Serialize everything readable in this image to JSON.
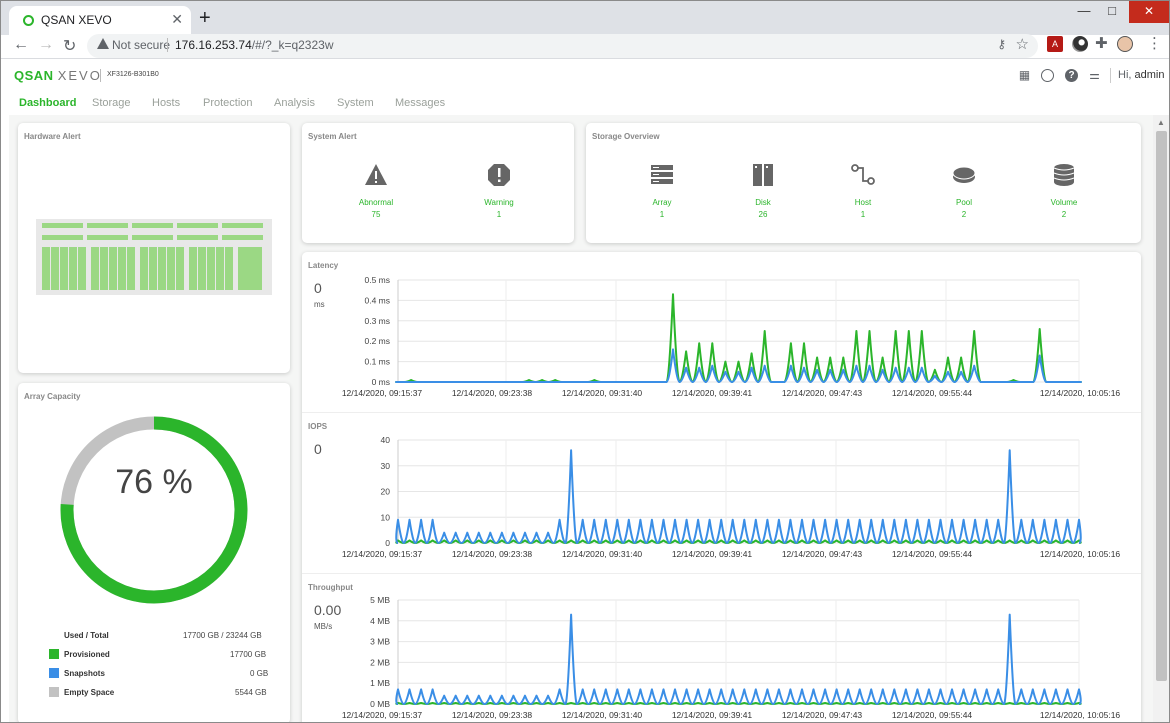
{
  "browser": {
    "tab_title": "QSAN XEVO",
    "tab_close": "✕",
    "new_tab": "+",
    "not_secure": "Not secure",
    "url_host": "176.16.253.74",
    "url_rest": "/#/?_k=q2323w",
    "win_min": "—",
    "win_max": "□",
    "win_close": "✕"
  },
  "app": {
    "logo_main": "QSAN",
    "logo_sub": "XEVO",
    "model": "XF3126-B301B0",
    "greeting": "Hi,",
    "user": "admin"
  },
  "nav": {
    "items": [
      {
        "label": "Dashboard",
        "active": true
      },
      {
        "label": "Storage"
      },
      {
        "label": "Hosts"
      },
      {
        "label": "Protection"
      },
      {
        "label": "Analysis"
      },
      {
        "label": "System"
      },
      {
        "label": "Messages"
      }
    ]
  },
  "hardware_alert": {
    "title": "Hardware Alert"
  },
  "array_capacity": {
    "title": "Array Capacity",
    "percent": 76,
    "percent_label": "76 %",
    "used_total_label": "Used / Total",
    "used_total_value": "17700 GB / 23244 GB",
    "legend": [
      {
        "label": "Provisioned",
        "value": "17700 GB",
        "color": "#2bb52b"
      },
      {
        "label": "Snapshots",
        "value": "0 GB",
        "color": "#3a8ee6"
      },
      {
        "label": "Empty Space",
        "value": "5544 GB",
        "color": "#c2c2c2"
      }
    ]
  },
  "system_alert": {
    "title": "System Alert",
    "items": [
      {
        "label": "Abnormal",
        "value": "75",
        "icon": "warning-triangle-icon"
      },
      {
        "label": "Warning",
        "value": "1",
        "icon": "warning-octagon-icon"
      }
    ]
  },
  "storage_overview": {
    "title": "Storage Overview",
    "items": [
      {
        "label": "Array",
        "value": "1",
        "icon": "array-icon"
      },
      {
        "label": "Disk",
        "value": "26",
        "icon": "disk-icon"
      },
      {
        "label": "Host",
        "value": "1",
        "icon": "host-icon"
      },
      {
        "label": "Pool",
        "value": "2",
        "icon": "pool-icon"
      },
      {
        "label": "Volume",
        "value": "2",
        "icon": "volume-icon"
      }
    ]
  },
  "metrics": {
    "latency": {
      "title": "Latency",
      "value": "0",
      "unit": "ms"
    },
    "iops": {
      "title": "IOPS",
      "value": "0"
    },
    "throughput": {
      "title": "Throughput",
      "value": "0.00",
      "unit": "MB/s"
    }
  },
  "chart_data": [
    {
      "type": "line",
      "title": "Latency",
      "y_ticks": [
        "0 ms",
        "0.1 ms",
        "0.2 ms",
        "0.3 ms",
        "0.4 ms",
        "0.5 ms"
      ],
      "ylim": [
        0,
        0.5
      ],
      "x_ticks": [
        "12/14/2020, 09:15:37",
        "12/14/2020, 09:23:38",
        "12/14/2020, 09:31:40",
        "12/14/2020, 09:39:41",
        "12/14/2020, 09:47:43",
        "12/14/2020, 09:55:44",
        "12/14/2020, 10:05:16"
      ],
      "grid": true,
      "series": [
        {
          "color": "#2bb52b",
          "values": [
            0,
            0.01,
            0,
            0,
            0,
            0,
            0,
            0,
            0,
            0,
            0.01,
            0.01,
            0.01,
            0,
            0,
            0.01,
            0,
            0,
            0,
            0,
            0,
            0.43,
            0.15,
            0.19,
            0.19,
            0.1,
            0.1,
            0.14,
            0.25,
            0,
            0.19,
            0.19,
            0.12,
            0.12,
            0.12,
            0.25,
            0.25,
            0.12,
            0.25,
            0.25,
            0.25,
            0.06,
            0.12,
            0.12,
            0.25,
            0,
            0,
            0.01,
            0,
            0.26,
            0,
            0,
            0
          ]
        },
        {
          "color": "#3a8ee6",
          "values": [
            0,
            0,
            0,
            0,
            0,
            0,
            0,
            0,
            0,
            0,
            0,
            0,
            0,
            0,
            0,
            0,
            0,
            0,
            0,
            0,
            0,
            0.16,
            0.07,
            0.07,
            0.08,
            0.05,
            0.05,
            0.07,
            0.08,
            0,
            0.08,
            0.07,
            0.06,
            0.06,
            0.06,
            0.08,
            0.08,
            0.06,
            0.07,
            0.07,
            0.07,
            0.03,
            0.05,
            0.05,
            0.08,
            0,
            0,
            0,
            0,
            0.13,
            0,
            0,
            0
          ]
        }
      ]
    },
    {
      "type": "line",
      "title": "IOPS",
      "y_ticks": [
        "0",
        "10",
        "20",
        "30",
        "40"
      ],
      "ylim": [
        0,
        40
      ],
      "x_ticks": [
        "12/14/2020, 09:15:37",
        "12/14/2020, 09:23:38",
        "12/14/2020, 09:31:40",
        "12/14/2020, 09:39:41",
        "12/14/2020, 09:47:43",
        "12/14/2020, 09:55:44",
        "12/14/2020, 10:05:16"
      ],
      "grid": true,
      "series": [
        {
          "color": "#2bb52b",
          "values": [
            1,
            1,
            1,
            1,
            1,
            1,
            1,
            1,
            1,
            1,
            1,
            1,
            1,
            1,
            1,
            1,
            1,
            1,
            1,
            1,
            1,
            1,
            1,
            1,
            1,
            1,
            1,
            1,
            1,
            1,
            1,
            1,
            1,
            1,
            1,
            1,
            1,
            1,
            1,
            1,
            1,
            1,
            1,
            1,
            1,
            1,
            1,
            1,
            1,
            1,
            1,
            1,
            1,
            1,
            1,
            1,
            1,
            1,
            1,
            1
          ]
        },
        {
          "color": "#3a8ee6",
          "values": [
            9,
            9,
            9,
            9,
            4,
            4,
            4,
            4,
            4,
            4,
            4,
            4,
            4,
            4,
            9,
            36,
            9,
            9,
            9,
            9,
            9,
            9,
            9,
            9,
            9,
            9,
            9,
            9,
            9,
            9,
            9,
            9,
            9,
            9,
            9,
            9,
            9,
            9,
            9,
            9,
            9,
            9,
            9,
            9,
            9,
            9,
            9,
            9,
            9,
            9,
            9,
            9,
            9,
            36,
            9,
            9,
            9,
            9,
            9,
            9
          ]
        }
      ]
    },
    {
      "type": "line",
      "title": "Throughput",
      "y_ticks": [
        "0 MB",
        "1 MB",
        "2 MB",
        "3 MB",
        "4 MB",
        "5 MB"
      ],
      "ylim": [
        0,
        5
      ],
      "x_ticks": [
        "12/14/2020, 09:15:37",
        "12/14/2020, 09:23:38",
        "12/14/2020, 09:31:40",
        "12/14/2020, 09:39:41",
        "12/14/2020, 09:47:43",
        "12/14/2020, 09:55:44",
        "12/14/2020, 10:05:16"
      ],
      "grid": true,
      "series": [
        {
          "color": "#2bb52b",
          "values": [
            0.05,
            0.05,
            0.05,
            0.05,
            0.05,
            0.05,
            0.05,
            0.05,
            0.05,
            0.05,
            0.05,
            0.05,
            0.05,
            0.05,
            0.05,
            0.05,
            0.05,
            0.05,
            0.05,
            0.05,
            0.05,
            0.05,
            0.05,
            0.05,
            0.05,
            0.05,
            0.05,
            0.05,
            0.05,
            0.05,
            0.05,
            0.05,
            0.05,
            0.05,
            0.05,
            0.05,
            0.05,
            0.05,
            0.05,
            0.05,
            0.05,
            0.05,
            0.05,
            0.05,
            0.05,
            0.05,
            0.05,
            0.05,
            0.05,
            0.05,
            0.05,
            0.05,
            0.05,
            0.05,
            0.05,
            0.05,
            0.05,
            0.05,
            0.05,
            0.05
          ]
        },
        {
          "color": "#3a8ee6",
          "values": [
            0.7,
            0.7,
            0.7,
            0.7,
            0.4,
            0.4,
            0.4,
            0.4,
            0.4,
            0.4,
            0.4,
            0.4,
            0.4,
            0.4,
            0.7,
            4.3,
            0.7,
            0.7,
            0.7,
            0.7,
            0.7,
            0.7,
            0.7,
            0.7,
            0.7,
            0.7,
            0.7,
            0.7,
            0.7,
            0.7,
            0.7,
            0.7,
            0.7,
            0.7,
            0.7,
            0.7,
            0.7,
            0.7,
            0.7,
            0.7,
            0.7,
            0.7,
            0.7,
            0.7,
            0.7,
            0.7,
            0.7,
            0.7,
            0.7,
            0.7,
            0.7,
            0.7,
            0.7,
            4.3,
            0.7,
            0.7,
            0.7,
            0.7,
            0.7,
            0.7
          ]
        }
      ]
    }
  ]
}
